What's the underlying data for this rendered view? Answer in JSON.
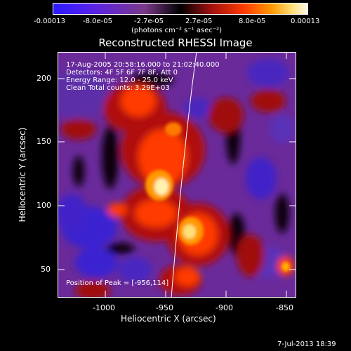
{
  "colorbar": {
    "tick_labels": [
      "-0.00013",
      "-8.0e-05",
      "-2.7e-05",
      "2.7e-05",
      "8.0e-05",
      "0.00013"
    ],
    "units_label": "(photons cm⁻² s⁻¹ asec⁻²)",
    "colors": [
      "#2b1bff",
      "#7a2bd6",
      "#7b3a88",
      "#000000",
      "#a01010",
      "#ff3b00",
      "#ff9a00",
      "#fff6c8"
    ]
  },
  "plot": {
    "title": "Reconstructed RHESSI Image",
    "xlabel": "Heliocentric X (arcsec)",
    "ylabel": "Heliocentric Y (arcsec)",
    "x_ticks": [
      "-1000",
      "-950",
      "-900",
      "-850"
    ],
    "y_ticks": [
      "50",
      "100",
      "150",
      "200"
    ],
    "xlim": [
      -1040,
      -845
    ],
    "ylim": [
      28,
      222
    ],
    "info": {
      "time_range": "17-Aug-2005 20:58:16.000 to 21:02:40.000",
      "detectors": "Detectors: 4F 5F 6F 7F 8F, Att 0",
      "energy": "Energy Range: 12.0 - 25.0 keV",
      "method": "Clean    Total counts: 3.29E+03"
    },
    "peak_label": "Position of Peak = [-956,114]"
  },
  "timestamp": "7-Jul-2013 18:39"
}
